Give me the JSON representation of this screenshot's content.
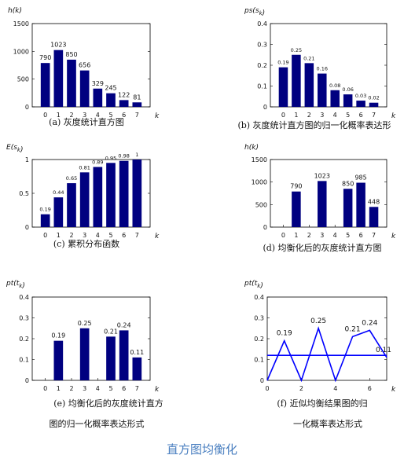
{
  "page_title": "直方图均衡化",
  "chart_data": [
    {
      "type": "bar",
      "ylabel": "h(k)",
      "xlabel": "k",
      "categories": [
        "0",
        "1",
        "2",
        "3",
        "4",
        "5",
        "6",
        "7"
      ],
      "values": [
        790,
        1023,
        850,
        656,
        329,
        245,
        122,
        81
      ],
      "value_labels": [
        "790",
        "1023",
        "850",
        "656",
        "329",
        "245",
        "122",
        "81"
      ],
      "ylim": [
        0,
        1500
      ],
      "yticks": [
        "0",
        "500",
        "1000",
        "1500"
      ],
      "caption": "(a)  灰度统计直方图",
      "bar_color": "#000080"
    },
    {
      "type": "bar",
      "ylabel": "ps(sk)",
      "xlabel": "k",
      "categories": [
        "0",
        "1",
        "2",
        "3",
        "4",
        "5",
        "6",
        "7"
      ],
      "values": [
        0.19,
        0.25,
        0.21,
        0.16,
        0.08,
        0.06,
        0.03,
        0.02
      ],
      "value_labels": [
        "0.19",
        "0.25",
        "0.21",
        "0.16",
        "0.08",
        "0.06",
        "0.03",
        "0.02"
      ],
      "ylim": [
        0,
        0.4
      ],
      "yticks": [
        "0",
        "0.1",
        "0.2",
        "0.3",
        "0.4"
      ],
      "caption": "(b)  灰度统计直方图的归一化概率表达形",
      "bar_color": "#000080"
    },
    {
      "type": "bar",
      "ylabel": "E(sk)",
      "xlabel": "k",
      "categories": [
        "0",
        "1",
        "2",
        "3",
        "4",
        "5",
        "6",
        "7"
      ],
      "values": [
        0.19,
        0.44,
        0.65,
        0.81,
        0.89,
        0.95,
        0.98,
        1
      ],
      "value_labels": [
        "0.19",
        "0.44",
        "0.65",
        "0.81",
        "0.89",
        "0.95",
        "0.98",
        "1"
      ],
      "ylim": [
        0,
        1
      ],
      "yticks": [
        "0",
        "0.5",
        "1"
      ],
      "caption": "(c)  累积分布函数",
      "bar_color": "#000080"
    },
    {
      "type": "bar",
      "ylabel": "h(k)",
      "xlabel": "k",
      "categories": [
        "0",
        "1",
        "2",
        "3",
        "4",
        "5",
        "6",
        "7"
      ],
      "values": [
        0,
        790,
        0,
        1023,
        0,
        850,
        985,
        448
      ],
      "value_labels": [
        "",
        "790",
        "",
        "1023",
        "",
        "850",
        "985",
        "448"
      ],
      "ylim": [
        0,
        1500
      ],
      "yticks": [
        "0",
        "500",
        "1000",
        "1500"
      ],
      "caption": "(d)  均衡化后的灰度统计直方图",
      "bar_color": "#000080"
    },
    {
      "type": "bar",
      "ylabel": "pt(tk)",
      "xlabel": "k",
      "categories": [
        "0",
        "1",
        "2",
        "3",
        "4",
        "5",
        "6",
        "7"
      ],
      "values": [
        0,
        0.19,
        0,
        0.25,
        0,
        0.21,
        0.24,
        0.11
      ],
      "value_labels": [
        "",
        "0.19",
        "",
        "0.25",
        "",
        "0.21",
        "0.24",
        "0.11"
      ],
      "ylim": [
        0,
        0.4
      ],
      "yticks": [
        "0",
        "0.1",
        "0.2",
        "0.3",
        "0.4"
      ],
      "caption": "(e)  均衡化后的灰度统计直方",
      "caption2": "图的归一化概率表达形式",
      "bar_color": "#000080"
    },
    {
      "type": "line",
      "ylabel": "pt(tk)",
      "xlabel": "k",
      "x": [
        0,
        1,
        2,
        3,
        4,
        5,
        6,
        7
      ],
      "values": [
        0,
        0.19,
        0,
        0.25,
        0,
        0.21,
        0.24,
        0.11
      ],
      "value_labels": [
        "",
        "0.19",
        "",
        "0.25",
        "",
        "0.21",
        "0.24",
        "0.11"
      ],
      "hline": 0.12,
      "xlim": [
        0,
        7
      ],
      "xticks": [
        "0",
        "2",
        "4",
        "6"
      ],
      "ylim": [
        0,
        0.4
      ],
      "yticks": [
        "0",
        "0.1",
        "0.2",
        "0.3",
        "0.4"
      ],
      "caption": "(f)  近似均衡结果图的归",
      "caption2": "一化概率表达形式",
      "line_color": "#0000ff"
    }
  ]
}
